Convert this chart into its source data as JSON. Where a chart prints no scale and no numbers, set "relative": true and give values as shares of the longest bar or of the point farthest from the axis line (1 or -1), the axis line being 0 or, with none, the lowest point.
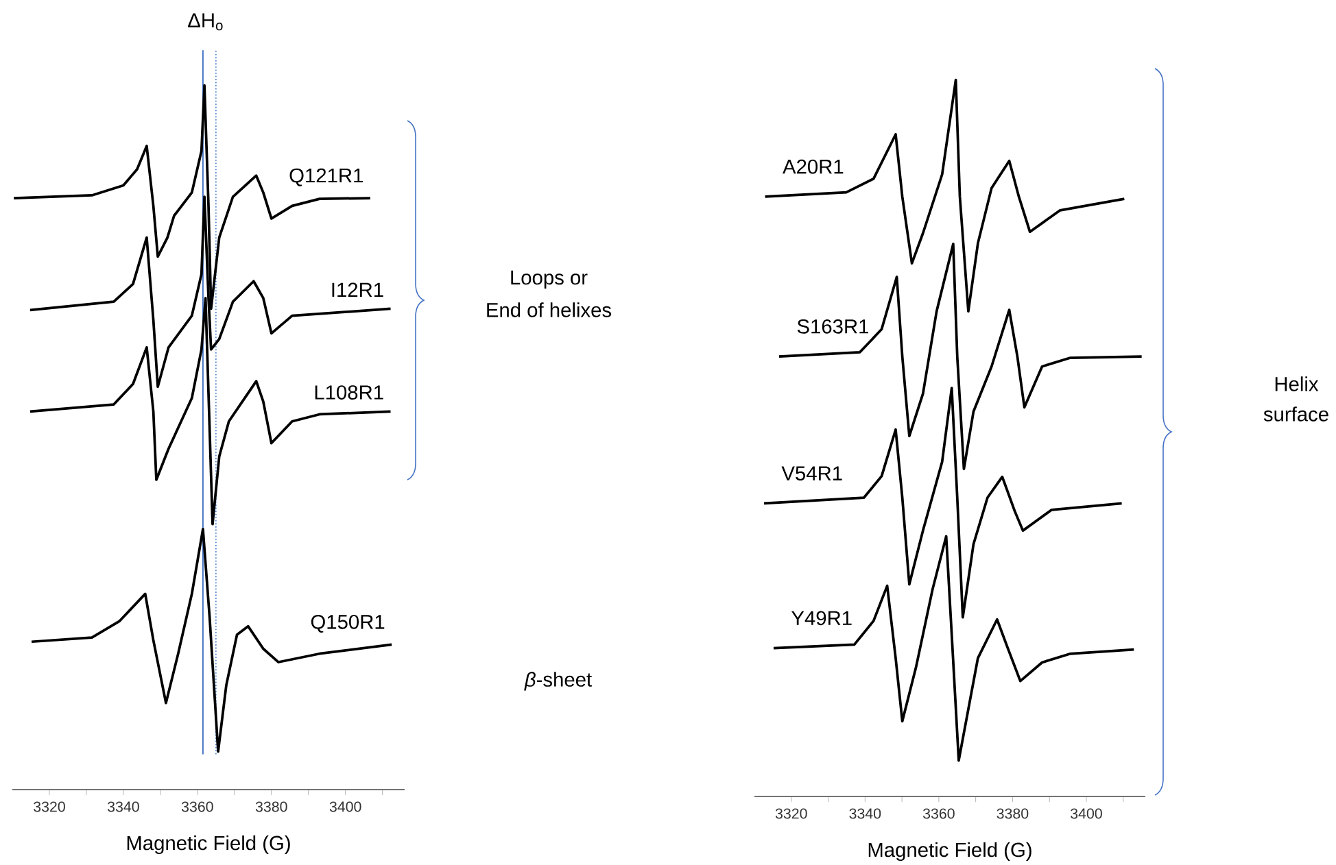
{
  "chart_data": [
    {
      "type": "line",
      "relative": true,
      "xlabel": "Magnetic Field (G)",
      "xlim": [
        3310,
        3416
      ],
      "xticks": [
        3320,
        {
          "value": 3330,
          "label": null
        },
        3340,
        {
          "value": 3350,
          "label": null
        },
        3360,
        {
          "value": 3370,
          "label": null
        },
        3380,
        {
          "value": 3390,
          "label": null
        },
        3400,
        {
          "value": 3410,
          "label": null
        }
      ],
      "annotations": [
        "ΔH$_{o}$",
        "Loops or",
        "End of helixes",
        "*β*-sheet"
      ],
      "ref_lines": [
        {
          "axis": "x",
          "value": 3361.5,
          "color": "#4472c4",
          "line_style": "solid"
        },
        {
          "axis": "x",
          "value": 3365,
          "color": "#5b8bd6",
          "line_style": "dotted"
        }
      ],
      "series": [
        {
          "name": "Q121R1",
          "color": "#000000",
          "x": [
            3310.4,
            3331.5,
            3340,
            3343.7,
            3346.3,
            3348.1,
            3349.3,
            3351.9,
            3353.7,
            3358.5,
            3361.1,
            3361.9,
            3363,
            3363.7,
            3365.9,
            3369.6,
            3375.9,
            3377.8,
            3380,
            3385.6,
            3393,
            3406.7
          ],
          "values": [
            0.84,
            0.844,
            0.858,
            0.881,
            0.914,
            0.829,
            0.757,
            0.784,
            0.815,
            0.848,
            0.907,
            1.0,
            0.829,
            0.683,
            0.784,
            0.842,
            0.872,
            0.848,
            0.811,
            0.829,
            0.839,
            0.84
          ]
        },
        {
          "name": "I12R1",
          "color": "#000000",
          "x": [
            3314.8,
            3337.4,
            3342.6,
            3346.3,
            3348.1,
            3349.3,
            3352.2,
            3358.5,
            3361.1,
            3361.9,
            3363,
            3363.7,
            3365.9,
            3369.6,
            3375.2,
            3377.8,
            3380,
            3385.6,
            3412.2
          ],
          "values": [
            0.681,
            0.693,
            0.718,
            0.784,
            0.667,
            0.572,
            0.628,
            0.673,
            0.732,
            0.842,
            0.698,
            0.625,
            0.64,
            0.693,
            0.722,
            0.698,
            0.648,
            0.673,
            0.683
          ]
        },
        {
          "name": "L108R1",
          "color": "#000000",
          "x": [
            3314.8,
            3337.4,
            3342.6,
            3346.3,
            3348.1,
            3348.9,
            3352.2,
            3358.5,
            3361.1,
            3362.2,
            3364.1,
            3365.9,
            3368.5,
            3375.9,
            3377.8,
            3380,
            3385.6,
            3393,
            3412.2
          ],
          "values": [
            0.537,
            0.547,
            0.576,
            0.628,
            0.537,
            0.44,
            0.484,
            0.556,
            0.625,
            0.698,
            0.377,
            0.473,
            0.523,
            0.58,
            0.551,
            0.492,
            0.523,
            0.533,
            0.537
          ]
        },
        {
          "name": "Q150R1",
          "color": "#000000",
          "x": [
            3315.2,
            3331.5,
            3338.9,
            3345.9,
            3348.1,
            3351.5,
            3354.8,
            3358.5,
            3361.5,
            3363.3,
            3365.6,
            3367.8,
            3370.7,
            3373.7,
            3377.8,
            3381.9,
            3393,
            3412.5
          ],
          "values": [
            0.21,
            0.216,
            0.239,
            0.278,
            0.212,
            0.123,
            0.193,
            0.278,
            0.37,
            0.245,
            0.054,
            0.148,
            0.22,
            0.232,
            0.2,
            0.181,
            0.193,
            0.206
          ]
        }
      ]
    },
    {
      "type": "line",
      "relative": true,
      "xlabel": "Magnetic Field (G)",
      "xlim": [
        3310,
        3416
      ],
      "xticks": [
        3320,
        {
          "value": 3330,
          "label": null
        },
        3340,
        {
          "value": 3350,
          "label": null
        },
        3360,
        {
          "value": 3370,
          "label": null
        },
        3380,
        {
          "value": 3390,
          "label": null
        },
        3400,
        {
          "value": 3410,
          "label": null
        }
      ],
      "annotations": [
        "Helix",
        "surface"
      ],
      "series": [
        {
          "name": "A20R1",
          "color": "#000000",
          "x": [
            3312.9,
            3334.9,
            3342.3,
            3348.3,
            3350.1,
            3352.7,
            3355.7,
            3360.9,
            3364.6,
            3365.7,
            3368,
            3370.6,
            3374.3,
            3379.1,
            3381.7,
            3384.7,
            3392.9,
            3410.3
          ],
          "values": [
            0.837,
            0.843,
            0.862,
            0.924,
            0.837,
            0.744,
            0.786,
            0.868,
            1.0,
            0.837,
            0.677,
            0.772,
            0.849,
            0.887,
            0.837,
            0.788,
            0.818,
            0.834
          ]
        },
        {
          "name": "S163R1",
          "color": "#000000",
          "x": [
            3316.7,
            3338.6,
            3344.5,
            3348.6,
            3350.1,
            3352,
            3355.7,
            3359.4,
            3363.9,
            3365,
            3366.8,
            3369.4,
            3374.3,
            3379.1,
            3381.3,
            3383.2,
            3388,
            3395.5,
            3415
          ],
          "values": [
            0.614,
            0.62,
            0.652,
            0.725,
            0.614,
            0.503,
            0.562,
            0.677,
            0.771,
            0.614,
            0.457,
            0.537,
            0.6,
            0.679,
            0.614,
            0.543,
            0.6,
            0.612,
            0.614
          ]
        },
        {
          "name": "V54R1",
          "color": "#000000",
          "x": [
            3312.6,
            3339.7,
            3344.5,
            3348.3,
            3350.1,
            3352,
            3355.7,
            3360.9,
            3363.5,
            3365,
            3366.5,
            3369.4,
            3373.2,
            3377.2,
            3380.6,
            3382.8,
            3390.6,
            3409.6
          ],
          "values": [
            0.409,
            0.417,
            0.447,
            0.512,
            0.417,
            0.296,
            0.371,
            0.467,
            0.57,
            0.417,
            0.25,
            0.352,
            0.417,
            0.446,
            0.398,
            0.371,
            0.4,
            0.409
          ]
        },
        {
          "name": "Y49R1",
          "color": "#000000",
          "x": [
            3315.2,
            3337.1,
            3342.3,
            3346,
            3348.3,
            3350.1,
            3353.8,
            3358.3,
            3362,
            3363.5,
            3365.4,
            3368.3,
            3370.6,
            3375.8,
            3378.7,
            3382.1,
            3388,
            3395.5,
            3412.9
          ],
          "values": [
            0.207,
            0.212,
            0.245,
            0.294,
            0.193,
            0.105,
            0.18,
            0.289,
            0.363,
            0.226,
            0.05,
            0.13,
            0.193,
            0.247,
            0.207,
            0.161,
            0.187,
            0.199,
            0.205
          ]
        }
      ]
    }
  ]
}
